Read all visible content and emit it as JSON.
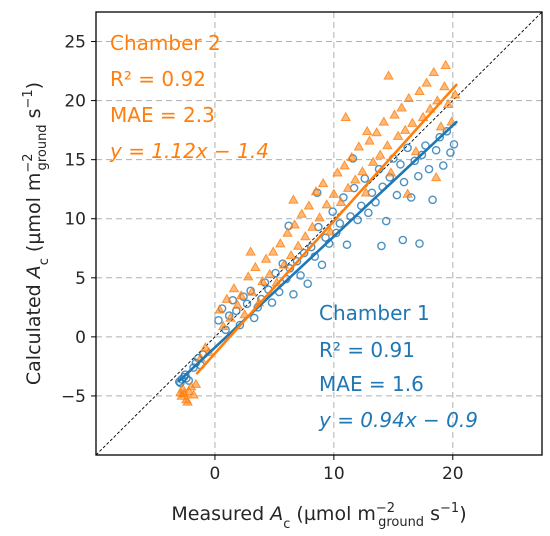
{
  "chart_data": {
    "type": "scatter",
    "title": "",
    "xlabel": "Measured A_c (µmol m_ground^−2 s^−1)",
    "ylabel": "Calculated A_c (µmol m_ground^−2 s^−1)",
    "xlim": [
      -10,
      27.5
    ],
    "ylim": [
      -10,
      27.5
    ],
    "xticks": [
      0,
      10,
      20
    ],
    "yticks": [
      -5,
      0,
      5,
      10,
      15,
      20,
      25
    ],
    "grid": true,
    "one_to_one_line": true,
    "colors": {
      "chamber1": "#1f77b4",
      "chamber2": "#ff7f0e",
      "reference": "#000000",
      "grid": "#b0b0b0"
    },
    "series": [
      {
        "name": "Chamber 1",
        "marker": "circle",
        "r2": "R² = 0.91",
        "mae": "MAE = 1.6",
        "equation": "y = 0.94x − 0.9",
        "fit": {
          "slope": 0.94,
          "intercept": -0.9,
          "x_range": [
            -3,
            20.3
          ]
        },
        "points": [
          [
            -3.0,
            -3.8
          ],
          [
            -2.8,
            -3.6
          ],
          [
            -2.6,
            -3.4
          ],
          [
            -2.4,
            -3.5
          ],
          [
            -2.9,
            -3.9
          ],
          [
            -2.5,
            -3.2
          ],
          [
            -2.2,
            -3.7
          ],
          [
            -1.8,
            -2.6
          ],
          [
            -1.6,
            -2.2
          ],
          [
            -1.4,
            -1.8
          ],
          [
            -1.2,
            -2.4
          ],
          [
            -1.0,
            -1.5
          ],
          [
            0.3,
            1.4
          ],
          [
            0.6,
            2.4
          ],
          [
            0.9,
            0.6
          ],
          [
            1.2,
            1.8
          ],
          [
            1.5,
            3.1
          ],
          [
            1.8,
            2.2
          ],
          [
            2.1,
            1.0
          ],
          [
            2.4,
            3.4
          ],
          [
            2.7,
            2.8
          ],
          [
            3.0,
            3.9
          ],
          [
            3.3,
            1.6
          ],
          [
            3.6,
            2.5
          ],
          [
            3.9,
            3.2
          ],
          [
            4.2,
            4.6
          ],
          [
            4.5,
            4.0
          ],
          [
            4.8,
            2.9
          ],
          [
            5.1,
            5.4
          ],
          [
            5.4,
            3.8
          ],
          [
            5.7,
            6.2
          ],
          [
            6.0,
            4.9
          ],
          [
            6.3,
            5.8
          ],
          [
            6.6,
            3.6
          ],
          [
            6.9,
            6.4
          ],
          [
            7.2,
            5.2
          ],
          [
            7.5,
            7.1
          ],
          [
            7.8,
            4.5
          ],
          [
            8.1,
            7.6
          ],
          [
            8.4,
            6.8
          ],
          [
            8.7,
            9.3
          ],
          [
            9.0,
            6.1
          ],
          [
            9.3,
            8.4
          ],
          [
            9.6,
            7.9
          ],
          [
            9.9,
            10.6
          ],
          [
            10.2,
            8.8
          ],
          [
            10.5,
            9.6
          ],
          [
            10.8,
            11.8
          ],
          [
            11.1,
            7.8
          ],
          [
            11.4,
            10.2
          ],
          [
            11.7,
            12.6
          ],
          [
            12.0,
            9.9
          ],
          [
            12.3,
            11.1
          ],
          [
            12.6,
            13.4
          ],
          [
            12.9,
            10.5
          ],
          [
            13.2,
            12.2
          ],
          [
            13.5,
            11.4
          ],
          [
            13.8,
            14.2
          ],
          [
            14.1,
            12.7
          ],
          [
            14.4,
            9.8
          ],
          [
            14.7,
            13.5
          ],
          [
            15.0,
            15.1
          ],
          [
            15.3,
            12.0
          ],
          [
            15.6,
            14.6
          ],
          [
            15.9,
            13.1
          ],
          [
            16.2,
            16.0
          ],
          [
            16.5,
            11.8
          ],
          [
            16.8,
            14.9
          ],
          [
            17.1,
            13.6
          ],
          [
            17.4,
            15.4
          ],
          [
            17.7,
            16.2
          ],
          [
            18.0,
            14.2
          ],
          [
            18.3,
            11.6
          ],
          [
            18.6,
            15.8
          ],
          [
            18.9,
            16.9
          ],
          [
            19.2,
            14.5
          ],
          [
            19.5,
            17.4
          ],
          [
            19.8,
            15.6
          ],
          [
            20.1,
            16.3
          ],
          [
            14.0,
            7.7
          ],
          [
            15.8,
            8.2
          ],
          [
            17.2,
            7.9
          ],
          [
            11.6,
            15.1
          ],
          [
            8.6,
            12.2
          ],
          [
            6.2,
            9.4
          ]
        ]
      },
      {
        "name": "Chamber 2",
        "marker": "triangle",
        "r2": "R² = 0.92",
        "mae": "MAE = 2.3",
        "equation": "y = 1.12x − 1.4",
        "fit": {
          "slope": 1.12,
          "intercept": -1.4,
          "x_range": [
            -1.5,
            20.3
          ]
        },
        "points": [
          [
            -2.8,
            -5.0
          ],
          [
            -2.6,
            -4.8
          ],
          [
            -2.4,
            -5.3
          ],
          [
            -2.2,
            -4.6
          ],
          [
            -2.0,
            -4.2
          ],
          [
            -1.8,
            -4.9
          ],
          [
            -2.7,
            -4.4
          ],
          [
            -2.3,
            -5.5
          ],
          [
            -1.6,
            -4.0
          ],
          [
            -2.9,
            -4.7
          ],
          [
            -1.2,
            -1.8
          ],
          [
            -0.8,
            -0.9
          ],
          [
            -0.5,
            -1.3
          ],
          [
            0.4,
            2.3
          ],
          [
            0.7,
            0.9
          ],
          [
            1.0,
            3.2
          ],
          [
            1.3,
            1.6
          ],
          [
            1.6,
            4.1
          ],
          [
            1.9,
            2.7
          ],
          [
            2.2,
            3.5
          ],
          [
            2.5,
            1.9
          ],
          [
            2.8,
            5.1
          ],
          [
            3.1,
            3.8
          ],
          [
            3.4,
            5.9
          ],
          [
            3.7,
            2.9
          ],
          [
            4.0,
            4.7
          ],
          [
            4.3,
            6.6
          ],
          [
            4.6,
            5.3
          ],
          [
            4.9,
            7.2
          ],
          [
            5.2,
            4.6
          ],
          [
            5.5,
            7.9
          ],
          [
            5.8,
            6.1
          ],
          [
            6.1,
            8.8
          ],
          [
            6.4,
            6.9
          ],
          [
            6.7,
            9.5
          ],
          [
            7.0,
            7.7
          ],
          [
            7.3,
            10.4
          ],
          [
            7.6,
            8.5
          ],
          [
            7.9,
            11.1
          ],
          [
            8.2,
            9.3
          ],
          [
            8.5,
            12.3
          ],
          [
            8.8,
            10.1
          ],
          [
            9.1,
            13.0
          ],
          [
            9.4,
            11.2
          ],
          [
            9.7,
            8.9
          ],
          [
            10.0,
            12.1
          ],
          [
            10.3,
            13.9
          ],
          [
            10.6,
            11.4
          ],
          [
            10.9,
            14.5
          ],
          [
            11.2,
            12.6
          ],
          [
            11.5,
            15.2
          ],
          [
            11.8,
            13.3
          ],
          [
            12.1,
            16.1
          ],
          [
            12.4,
            14.0
          ],
          [
            12.7,
            12.2
          ],
          [
            13.0,
            16.6
          ],
          [
            13.3,
            14.8
          ],
          [
            13.6,
            17.3
          ],
          [
            13.9,
            15.4
          ],
          [
            14.2,
            18.2
          ],
          [
            14.5,
            16.2
          ],
          [
            14.8,
            13.9
          ],
          [
            15.1,
            18.8
          ],
          [
            15.4,
            17.0
          ],
          [
            15.7,
            19.4
          ],
          [
            16.0,
            17.5
          ],
          [
            16.3,
            20.2
          ],
          [
            16.6,
            18.1
          ],
          [
            16.9,
            15.7
          ],
          [
            17.2,
            20.8
          ],
          [
            17.5,
            18.6
          ],
          [
            17.8,
            21.5
          ],
          [
            18.1,
            19.3
          ],
          [
            18.4,
            22.4
          ],
          [
            18.7,
            20.0
          ],
          [
            19.0,
            17.8
          ],
          [
            19.3,
            21.2
          ],
          [
            19.6,
            19.7
          ],
          [
            19.9,
            18.2
          ],
          [
            20.2,
            20.5
          ],
          [
            11.0,
            18.6
          ],
          [
            14.6,
            22.1
          ],
          [
            19.4,
            23.0
          ],
          [
            12.8,
            17.4
          ],
          [
            6.6,
            11.6
          ],
          [
            3.0,
            7.2
          ],
          [
            16.2,
            12.1
          ],
          [
            18.6,
            13.5
          ]
        ]
      }
    ]
  }
}
